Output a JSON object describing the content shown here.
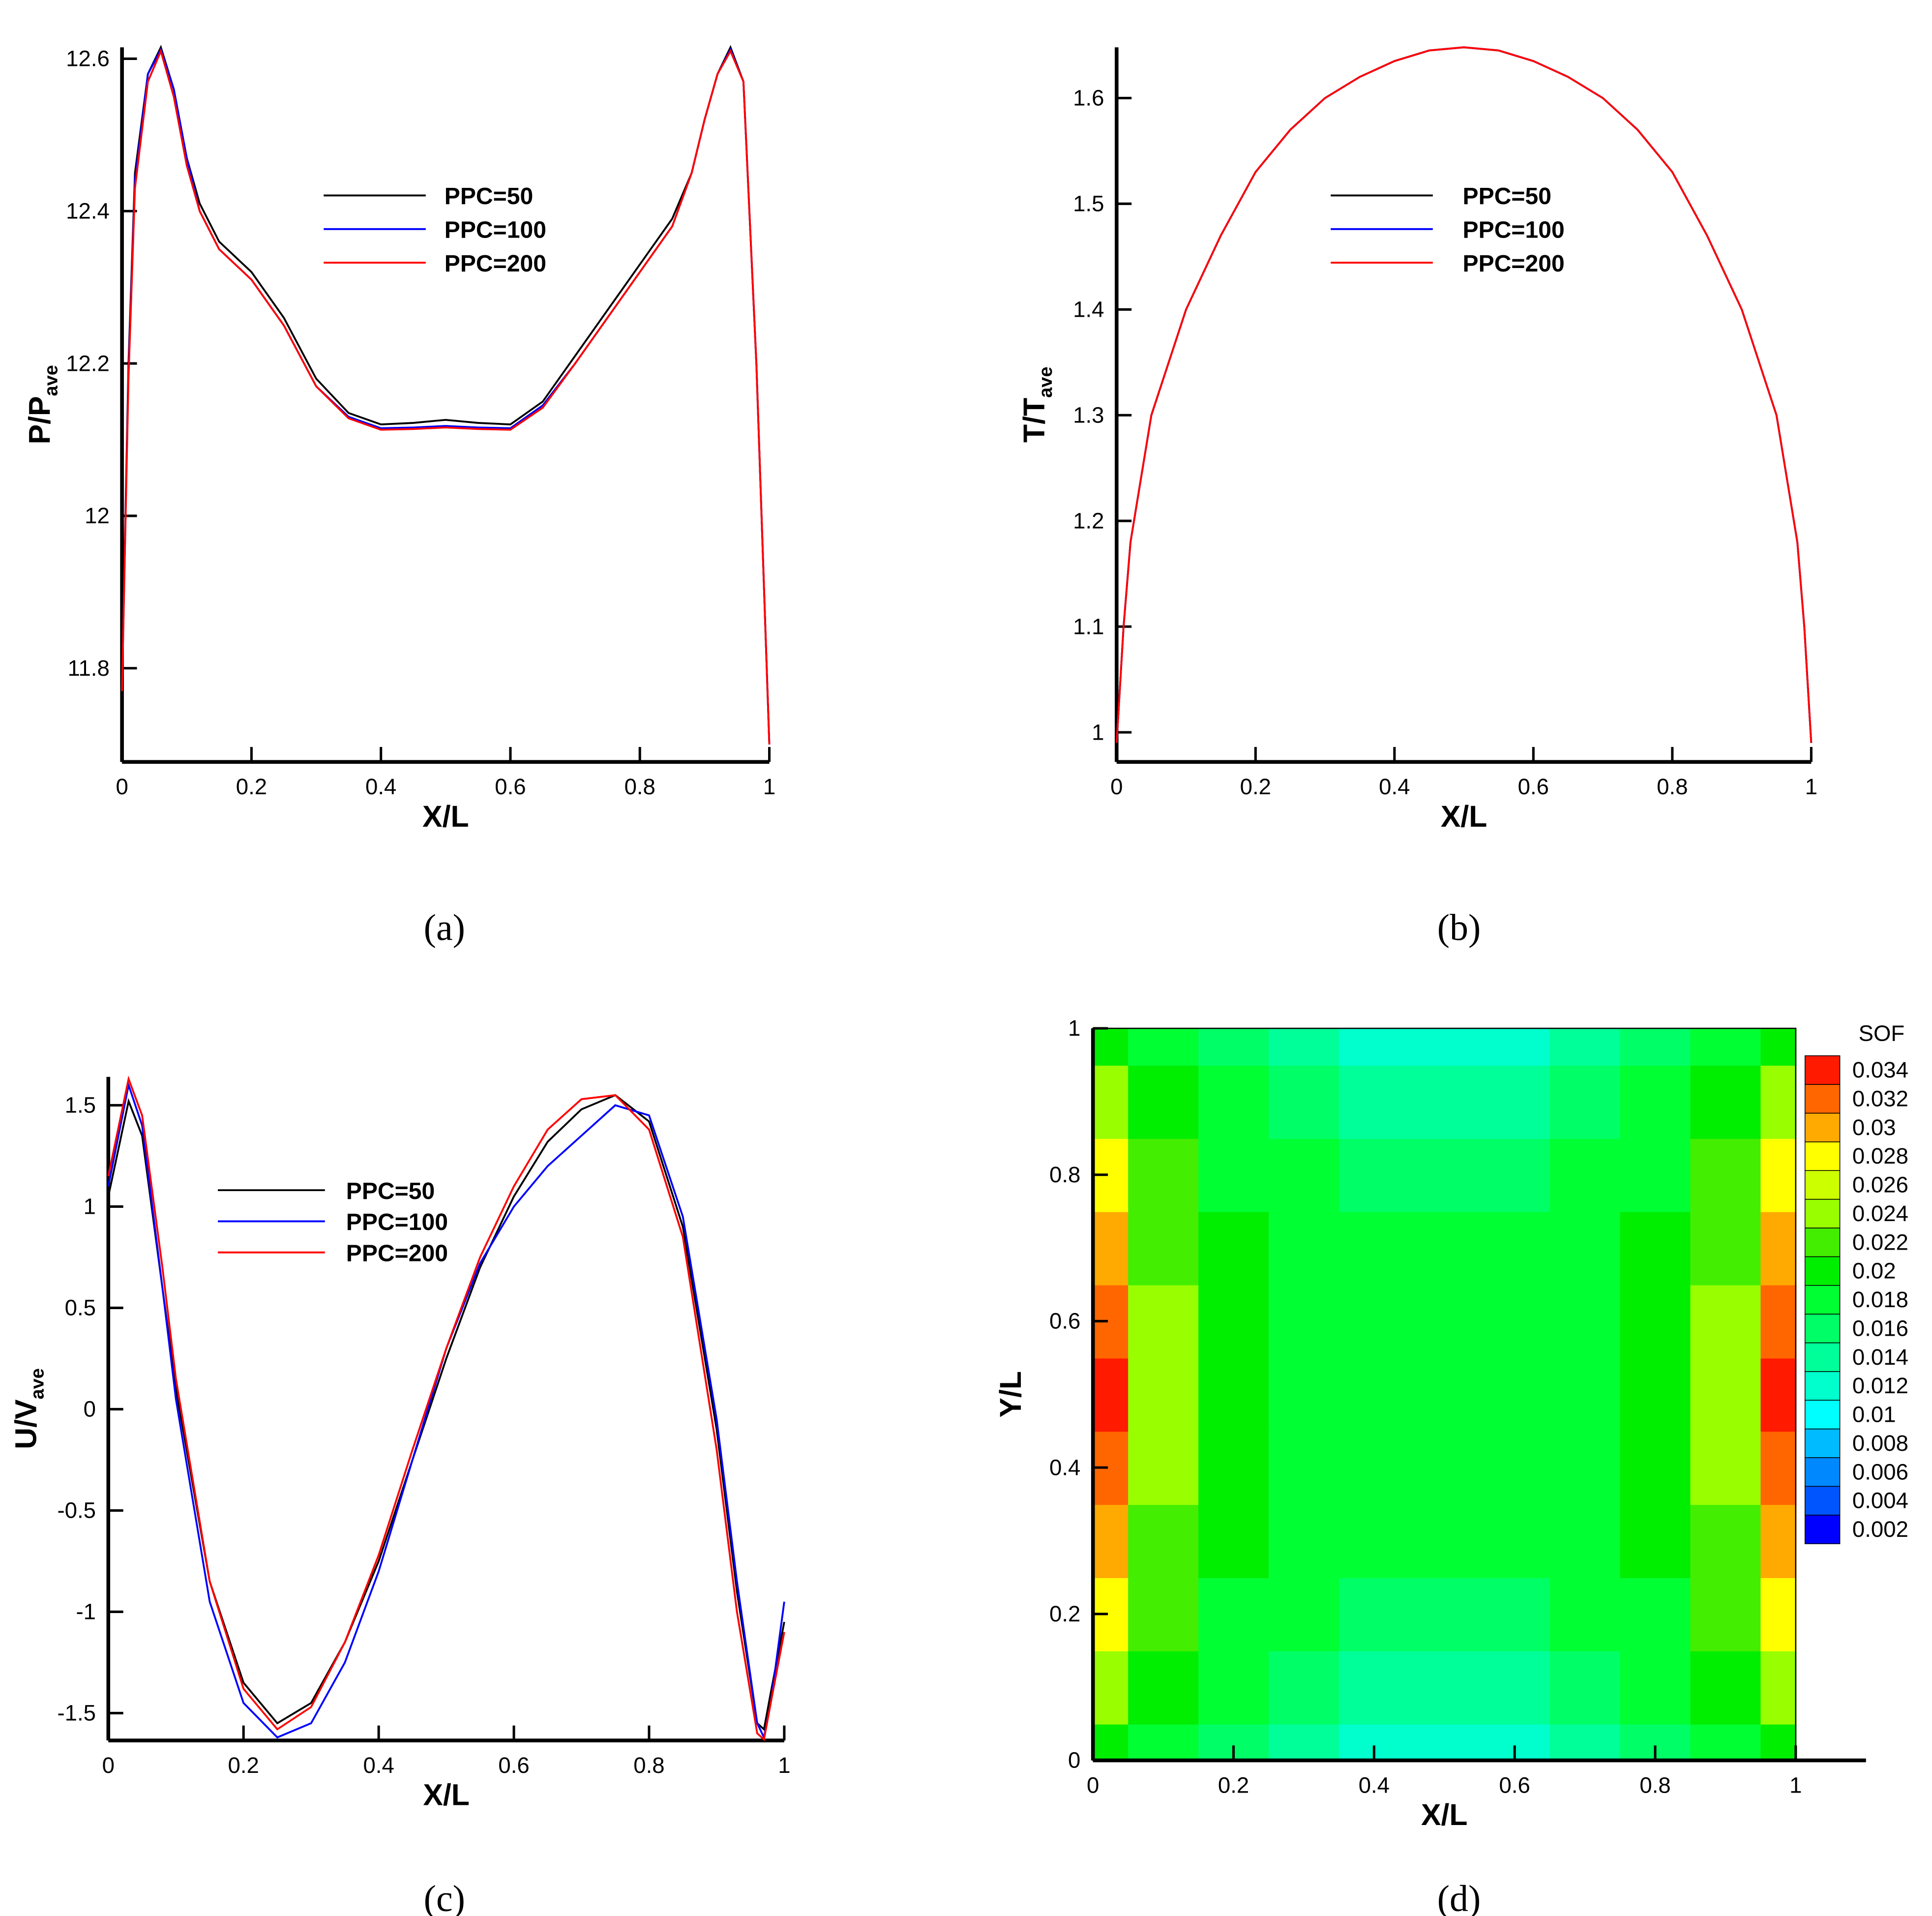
{
  "chart_data": [
    {
      "type": "line",
      "caption": "(a)",
      "xlabel": "X/L",
      "ylabel": "P/P",
      "ylabel_sub": "ave",
      "xlim": [
        0,
        1
      ],
      "ylim": [
        11.677,
        12.615
      ],
      "xticks": [
        0,
        0.2,
        0.4,
        0.6,
        0.8,
        1
      ],
      "yticks": [
        11.8,
        12,
        12.2,
        12.4,
        12.6
      ],
      "x": [
        0,
        0.01,
        0.02,
        0.04,
        0.06,
        0.08,
        0.1,
        0.12,
        0.15,
        0.2,
        0.25,
        0.3,
        0.35,
        0.4,
        0.45,
        0.5,
        0.55,
        0.6,
        0.65,
        0.7,
        0.75,
        0.8,
        0.85,
        0.88,
        0.9,
        0.92,
        0.94,
        0.96,
        0.98,
        0.99,
        1
      ],
      "series": [
        {
          "name": "PPC=50",
          "color": "#000000",
          "values": [
            11.78,
            12.2,
            12.45,
            12.58,
            12.615,
            12.56,
            12.47,
            12.41,
            12.36,
            12.32,
            12.26,
            12.18,
            12.135,
            12.12,
            12.122,
            12.126,
            12.122,
            12.12,
            12.15,
            12.21,
            12.27,
            12.33,
            12.39,
            12.45,
            12.52,
            12.58,
            12.615,
            12.57,
            12.2,
            11.95,
            11.7
          ]
        },
        {
          "name": "PPC=100",
          "color": "#0000ff",
          "values": [
            11.77,
            12.19,
            12.44,
            12.58,
            12.612,
            12.56,
            12.47,
            12.4,
            12.35,
            12.31,
            12.25,
            12.17,
            12.13,
            12.115,
            12.116,
            12.118,
            12.116,
            12.115,
            12.145,
            12.2,
            12.26,
            12.32,
            12.38,
            12.45,
            12.52,
            12.58,
            12.612,
            12.57,
            12.2,
            11.95,
            11.7
          ]
        },
        {
          "name": "PPC=200",
          "color": "#ff0000",
          "values": [
            11.77,
            12.18,
            12.43,
            12.57,
            12.61,
            12.55,
            12.46,
            12.4,
            12.35,
            12.31,
            12.25,
            12.17,
            12.128,
            12.113,
            12.114,
            12.116,
            12.114,
            12.113,
            12.142,
            12.2,
            12.26,
            12.32,
            12.38,
            12.45,
            12.52,
            12.58,
            12.61,
            12.57,
            12.2,
            11.95,
            11.7
          ]
        }
      ]
    },
    {
      "type": "line",
      "caption": "(b)",
      "xlabel": "X/L",
      "ylabel": "T/T",
      "ylabel_sub": "ave",
      "xlim": [
        0,
        1
      ],
      "ylim": [
        0.972,
        1.648
      ],
      "xticks": [
        0,
        0.2,
        0.4,
        0.6,
        0.8,
        1
      ],
      "yticks": [
        1,
        1.1,
        1.2,
        1.3,
        1.4,
        1.5,
        1.6
      ],
      "x": [
        0,
        0.01,
        0.02,
        0.05,
        0.1,
        0.15,
        0.2,
        0.25,
        0.3,
        0.35,
        0.4,
        0.45,
        0.5,
        0.55,
        0.6,
        0.65,
        0.7,
        0.75,
        0.8,
        0.85,
        0.9,
        0.95,
        0.98,
        0.99,
        1
      ],
      "series": [
        {
          "name": "PPC=50",
          "color": "#000000",
          "values": [
            0.99,
            1.1,
            1.18,
            1.3,
            1.4,
            1.47,
            1.53,
            1.57,
            1.6,
            1.62,
            1.635,
            1.645,
            1.648,
            1.645,
            1.635,
            1.62,
            1.6,
            1.57,
            1.53,
            1.47,
            1.4,
            1.3,
            1.18,
            1.1,
            0.99
          ]
        },
        {
          "name": "PPC=100",
          "color": "#0000ff",
          "values": [
            0.99,
            1.1,
            1.18,
            1.3,
            1.4,
            1.47,
            1.53,
            1.57,
            1.6,
            1.62,
            1.635,
            1.645,
            1.648,
            1.645,
            1.635,
            1.62,
            1.6,
            1.57,
            1.53,
            1.47,
            1.4,
            1.3,
            1.18,
            1.1,
            0.99
          ]
        },
        {
          "name": "PPC=200",
          "color": "#ff0000",
          "values": [
            0.99,
            1.1,
            1.18,
            1.3,
            1.4,
            1.47,
            1.53,
            1.57,
            1.6,
            1.62,
            1.635,
            1.645,
            1.648,
            1.645,
            1.635,
            1.62,
            1.6,
            1.57,
            1.53,
            1.47,
            1.4,
            1.3,
            1.18,
            1.1,
            0.99
          ]
        }
      ]
    },
    {
      "type": "line",
      "caption": "(c)",
      "xlabel": "X/L",
      "ylabel": "U/V",
      "ylabel_sub": "ave",
      "xlim": [
        0,
        1
      ],
      "ylim": [
        -1.635,
        1.64
      ],
      "xticks": [
        0,
        0.2,
        0.4,
        0.6,
        0.8,
        1
      ],
      "yticks": [
        -1.5,
        -1,
        -0.5,
        0,
        0.5,
        1,
        1.5
      ],
      "x": [
        0,
        0.03,
        0.05,
        0.08,
        0.1,
        0.15,
        0.2,
        0.25,
        0.3,
        0.35,
        0.4,
        0.45,
        0.5,
        0.55,
        0.6,
        0.65,
        0.7,
        0.75,
        0.8,
        0.85,
        0.9,
        0.93,
        0.96,
        0.97,
        0.98,
        1
      ],
      "series": [
        {
          "name": "PPC=50",
          "color": "#000000",
          "values": [
            1.05,
            1.52,
            1.35,
            0.6,
            0.1,
            -0.85,
            -1.35,
            -1.55,
            -1.45,
            -1.15,
            -0.75,
            -0.25,
            0.25,
            0.7,
            1.05,
            1.32,
            1.48,
            1.55,
            1.42,
            0.9,
            -0.1,
            -0.9,
            -1.55,
            -1.58,
            -1.4,
            -1.05
          ]
        },
        {
          "name": "PPC=100",
          "color": "#0000ff",
          "values": [
            1.1,
            1.6,
            1.4,
            0.6,
            0.05,
            -0.95,
            -1.45,
            -1.62,
            -1.55,
            -1.25,
            -0.8,
            -0.25,
            0.3,
            0.72,
            1.0,
            1.2,
            1.35,
            1.5,
            1.45,
            0.95,
            -0.05,
            -0.85,
            -1.55,
            -1.62,
            -1.45,
            -0.95
          ]
        },
        {
          "name": "PPC=200",
          "color": "#ff0000",
          "values": [
            1.15,
            1.63,
            1.45,
            0.7,
            0.15,
            -0.85,
            -1.38,
            -1.58,
            -1.47,
            -1.15,
            -0.72,
            -0.2,
            0.3,
            0.75,
            1.1,
            1.38,
            1.53,
            1.55,
            1.38,
            0.85,
            -0.2,
            -1.0,
            -1.6,
            -1.63,
            -1.45,
            -1.1
          ]
        }
      ]
    },
    {
      "type": "contour",
      "caption": "(d)",
      "xlabel": "X/L",
      "ylabel": "Y/L",
      "colorbar_title": "SOF",
      "xlim": [
        0,
        1.1
      ],
      "ylim": [
        0,
        1
      ],
      "xticks": [
        0,
        0.2,
        0.4,
        0.6,
        0.8,
        1
      ],
      "yticks": [
        0,
        0.2,
        0.4,
        0.6,
        0.8,
        1
      ],
      "x": [
        0,
        0.1,
        0.2,
        0.3,
        0.4,
        0.5,
        0.6,
        0.7,
        0.8,
        0.9,
        1
      ],
      "y": [
        0,
        0.1,
        0.2,
        0.3,
        0.4,
        0.5,
        0.6,
        0.7,
        0.8,
        0.9,
        1
      ],
      "z": [
        [
          0.02,
          0.018,
          0.017,
          0.015,
          0.013,
          0.012,
          0.013,
          0.015,
          0.017,
          0.018,
          0.02
        ],
        [
          0.024,
          0.02,
          0.018,
          0.017,
          0.015,
          0.014,
          0.015,
          0.017,
          0.018,
          0.02,
          0.024
        ],
        [
          0.028,
          0.022,
          0.019,
          0.018,
          0.017,
          0.017,
          0.017,
          0.018,
          0.019,
          0.022,
          0.028
        ],
        [
          0.031,
          0.023,
          0.02,
          0.019,
          0.018,
          0.018,
          0.018,
          0.019,
          0.02,
          0.023,
          0.031
        ],
        [
          0.033,
          0.024,
          0.02,
          0.019,
          0.019,
          0.018,
          0.019,
          0.019,
          0.02,
          0.024,
          0.033
        ],
        [
          0.034,
          0.024,
          0.02,
          0.019,
          0.019,
          0.019,
          0.019,
          0.019,
          0.02,
          0.024,
          0.034
        ],
        [
          0.033,
          0.024,
          0.02,
          0.019,
          0.019,
          0.018,
          0.019,
          0.019,
          0.02,
          0.024,
          0.033
        ],
        [
          0.031,
          0.023,
          0.02,
          0.019,
          0.018,
          0.018,
          0.018,
          0.019,
          0.02,
          0.023,
          0.031
        ],
        [
          0.028,
          0.022,
          0.019,
          0.018,
          0.017,
          0.017,
          0.017,
          0.018,
          0.019,
          0.022,
          0.028
        ],
        [
          0.024,
          0.02,
          0.018,
          0.017,
          0.015,
          0.014,
          0.015,
          0.017,
          0.018,
          0.02,
          0.024
        ],
        [
          0.02,
          0.018,
          0.017,
          0.015,
          0.013,
          0.012,
          0.013,
          0.015,
          0.017,
          0.018,
          0.02
        ]
      ],
      "levels": [
        0.002,
        0.004,
        0.006,
        0.008,
        0.01,
        0.012,
        0.014,
        0.016,
        0.018,
        0.02,
        0.022,
        0.024,
        0.026,
        0.028,
        0.03,
        0.032,
        0.034
      ],
      "colors": [
        "#0000ff",
        "#0055ff",
        "#0088ff",
        "#00bbff",
        "#00ffff",
        "#00ffcc",
        "#00ff99",
        "#00ff66",
        "#00ff33",
        "#00ee00",
        "#44ee00",
        "#99ff00",
        "#ccff00",
        "#ffff00",
        "#ffaa00",
        "#ff6600",
        "#ff1a00"
      ]
    }
  ]
}
